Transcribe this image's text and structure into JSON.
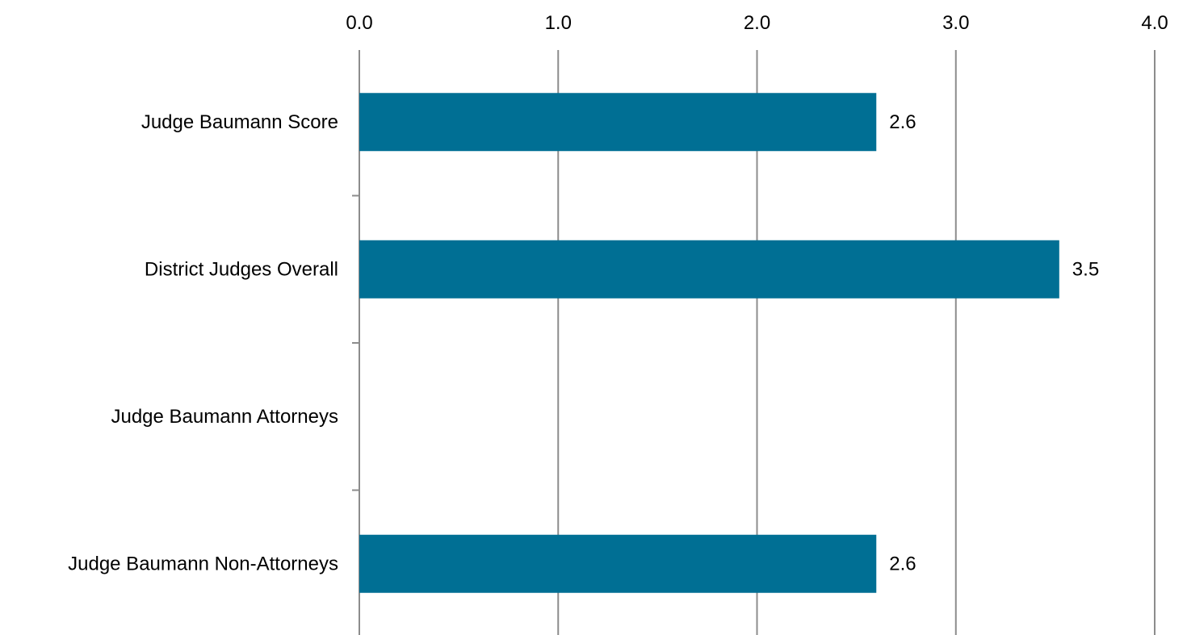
{
  "chart_data": {
    "type": "bar",
    "orientation": "horizontal",
    "categories": [
      "Judge Baumann Score",
      "District Judges Overall",
      "Judge Baumann Attorneys",
      "Judge Baumann Non-Attorneys"
    ],
    "values": [
      2.6,
      3.52,
      null,
      2.6
    ],
    "data_labels": [
      "2.6",
      "3.5",
      "",
      "2.6"
    ],
    "title": "",
    "xlabel": "",
    "ylabel": "",
    "xlim": [
      0,
      4
    ],
    "x_ticks": [
      0,
      1,
      2,
      3,
      4
    ],
    "x_tick_labels": [
      "0.0",
      "1.0",
      "2.0",
      "3.0",
      "4.0"
    ],
    "x_axis_position": "top",
    "grid": true,
    "legend": "none",
    "bar_color": "#006f94",
    "grid_color": "#8c8c8c"
  }
}
